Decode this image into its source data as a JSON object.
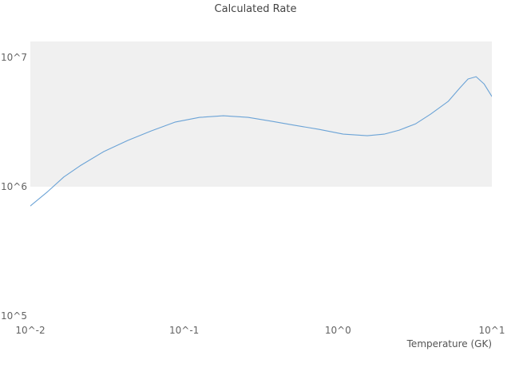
{
  "chart_data": {
    "type": "line",
    "title": "Calculated Rate",
    "xlabel": "Temperature (GK)",
    "ylabel": "",
    "xscale": "log",
    "yscale": "log",
    "xlim": [
      0.01,
      10
    ],
    "ylim": [
      100000,
      10000000
    ],
    "grid": "off",
    "legend": "none",
    "x_tick_values": [
      0.01,
      0.1,
      1,
      10
    ],
    "x_tick_labels": [
      "10^-2",
      "10^-1",
      "10^0",
      "10^1"
    ],
    "y_tick_values": [
      100000,
      1000000,
      10000000
    ],
    "y_tick_labels": [
      "10^5",
      "10^6",
      "10^7"
    ],
    "band_range": [
      1000000,
      10000000
    ],
    "colors": {
      "line": "#6ba3d6",
      "band": "#f0f0f0",
      "tick_text": "#636363",
      "title_text": "#434343"
    },
    "series": [
      {
        "name": "calculated-rate",
        "x": [
          0.01,
          0.013,
          0.0165,
          0.021,
          0.03,
          0.043,
          0.061,
          0.087,
          0.126,
          0.18,
          0.26,
          0.37,
          0.52,
          0.75,
          1.08,
          1.55,
          2.0,
          2.5,
          3.2,
          4.0,
          5.2,
          6.2,
          7.0,
          7.9,
          8.9,
          10.0
        ],
        "y": [
          710000,
          920000,
          1190000,
          1450000,
          1870000,
          2280000,
          2700000,
          3160000,
          3440000,
          3540000,
          3440000,
          3210000,
          2990000,
          2780000,
          2550000,
          2480000,
          2550000,
          2740000,
          3070000,
          3640000,
          4570000,
          5820000,
          6810000,
          7100000,
          6250000,
          5000000
        ]
      }
    ]
  }
}
